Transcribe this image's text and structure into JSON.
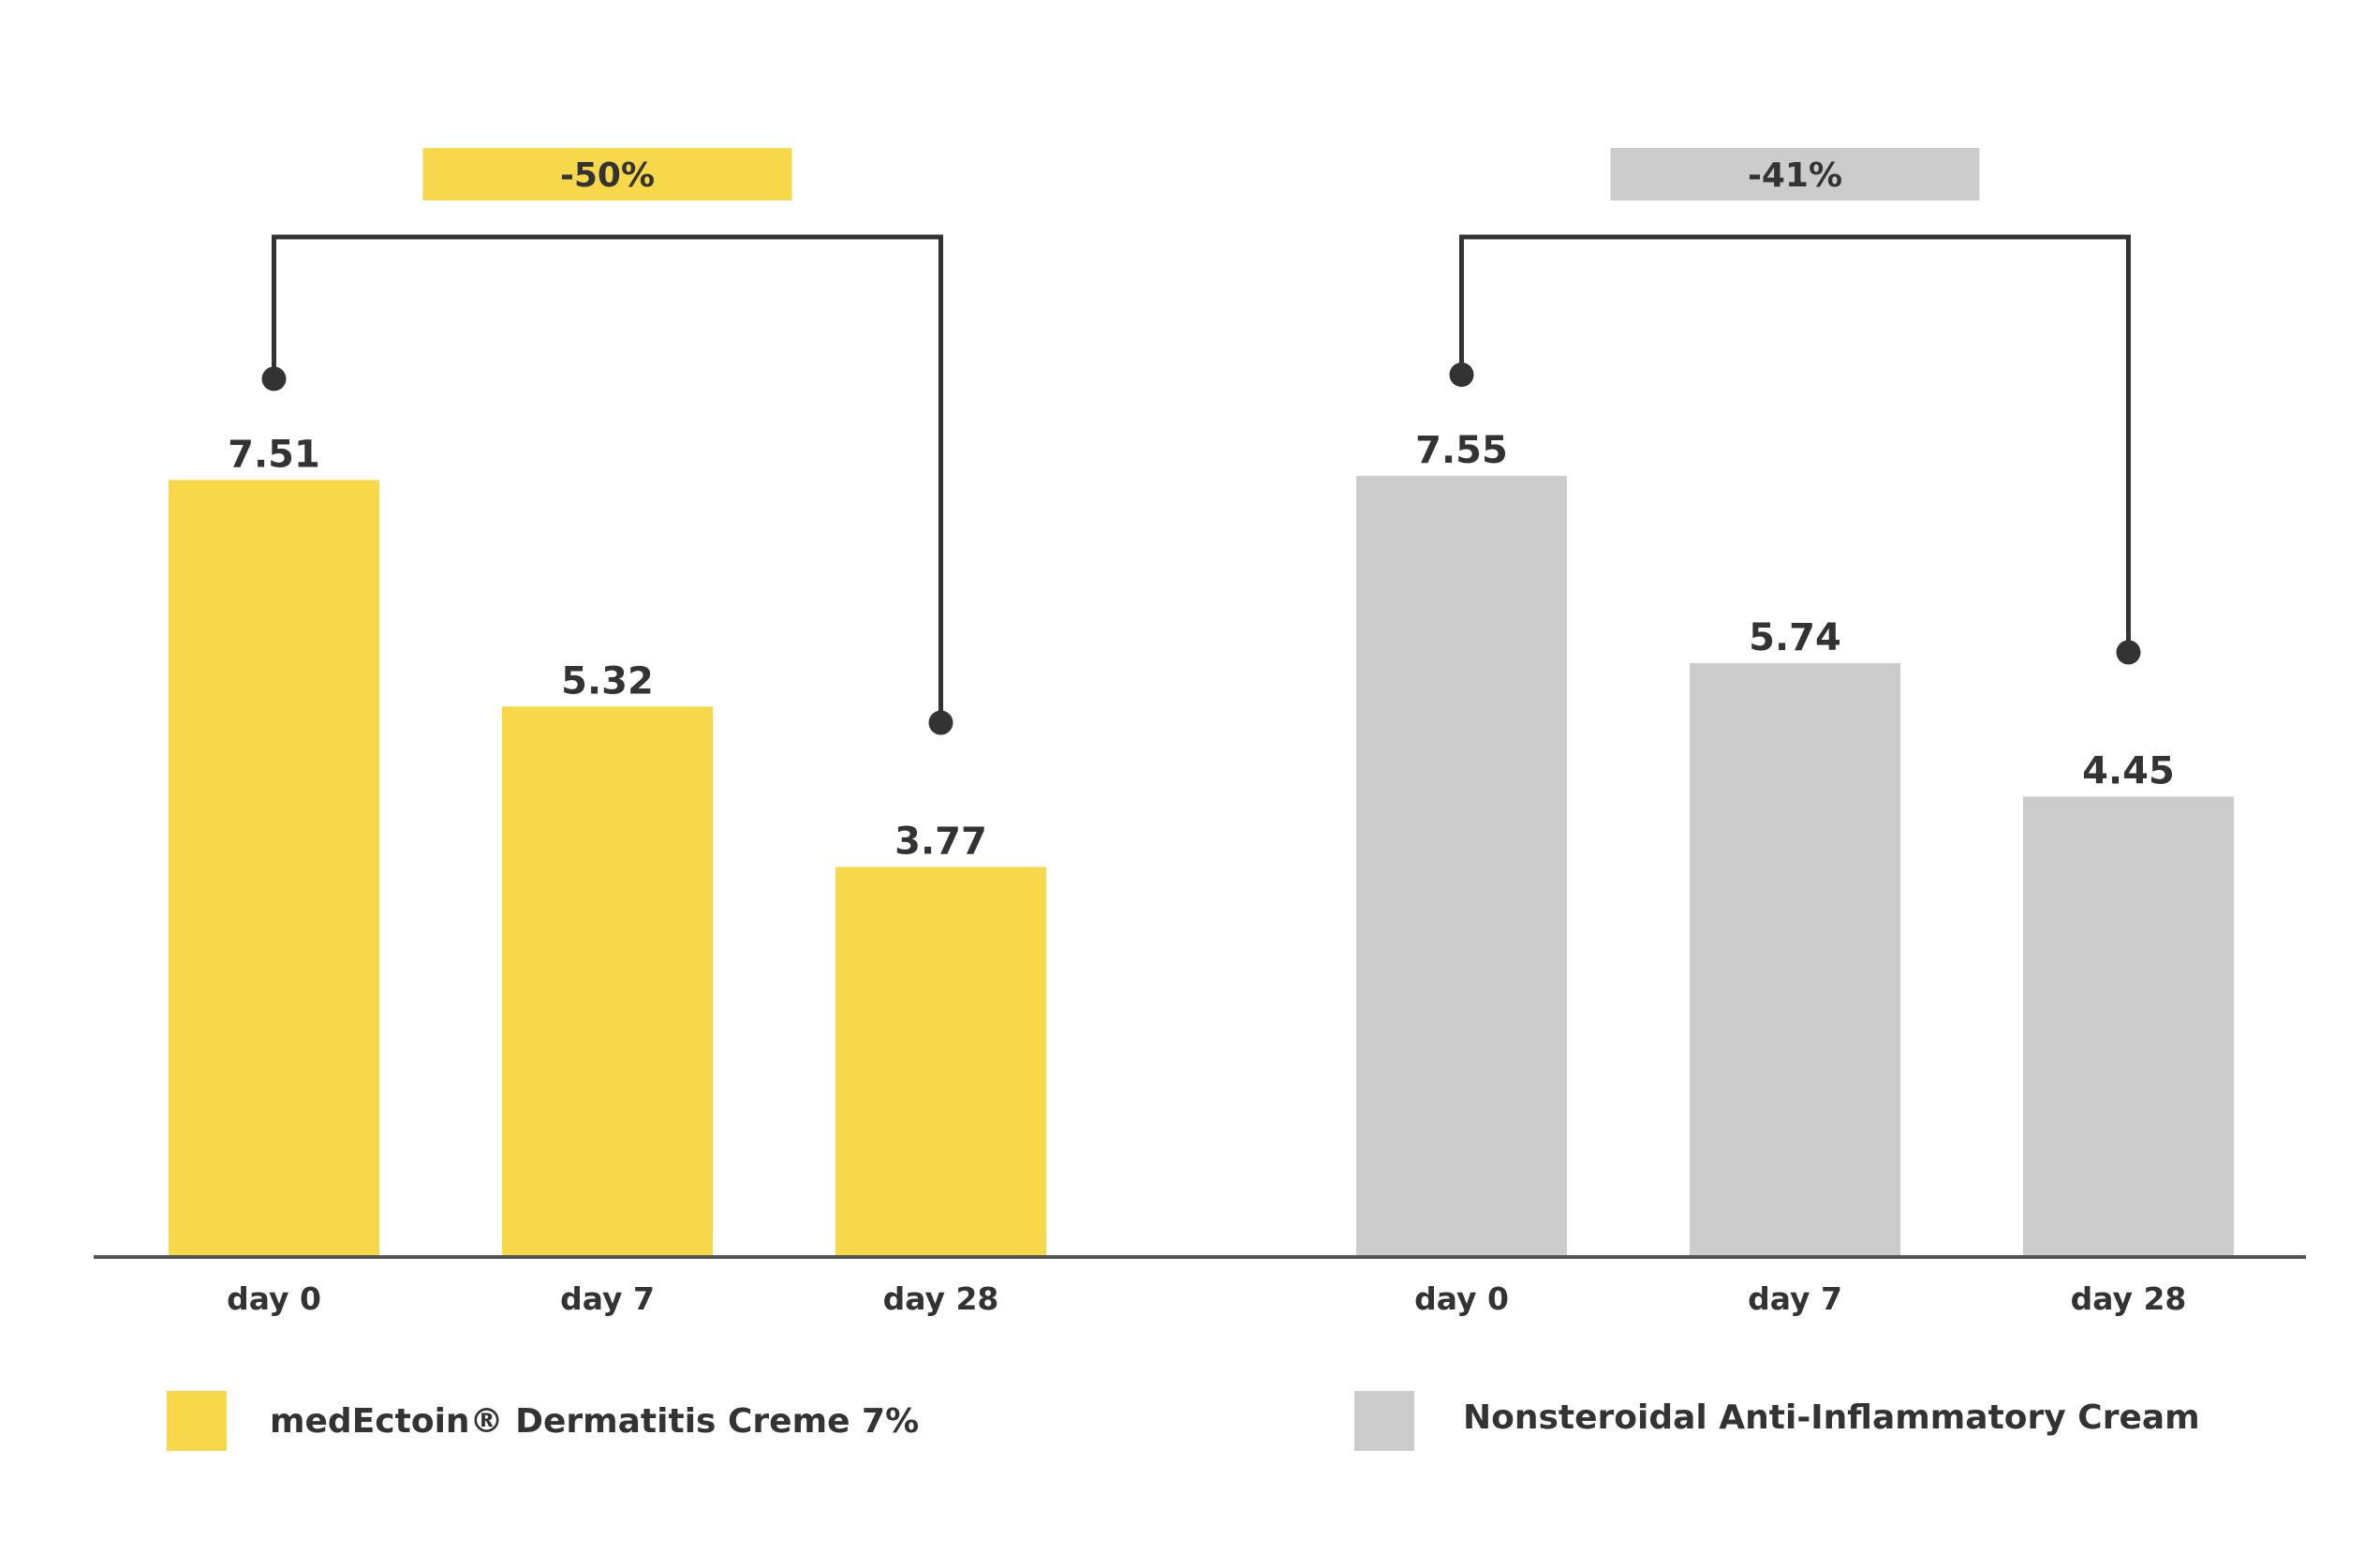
{
  "chart_data": {
    "type": "bar",
    "grid": false,
    "legend_position": "bottom",
    "categories": [
      "day 0",
      "day 7",
      "day 28"
    ],
    "series": [
      {
        "name": "medEctoin® Dermatitis Creme 7%",
        "color": "#F6D84A",
        "values": [
          7.51,
          5.32,
          3.77
        ],
        "value_labels": [
          "7.51",
          "5.32",
          "3.77"
        ],
        "change_label": "-50%",
        "change_badge_color": "#F6D84A"
      },
      {
        "name": "Nonsteroidal Anti-Inflammatory Cream",
        "color": "#CCCCCC",
        "values": [
          7.55,
          5.74,
          4.45
        ],
        "value_labels": [
          "7.55",
          "5.74",
          "4.45"
        ],
        "change_label": "-41%",
        "change_badge_color": "#CCCCCC"
      }
    ],
    "ylim": [
      0,
      7.55
    ],
    "axis_color": "#555555",
    "bracket_color": "#333333"
  }
}
